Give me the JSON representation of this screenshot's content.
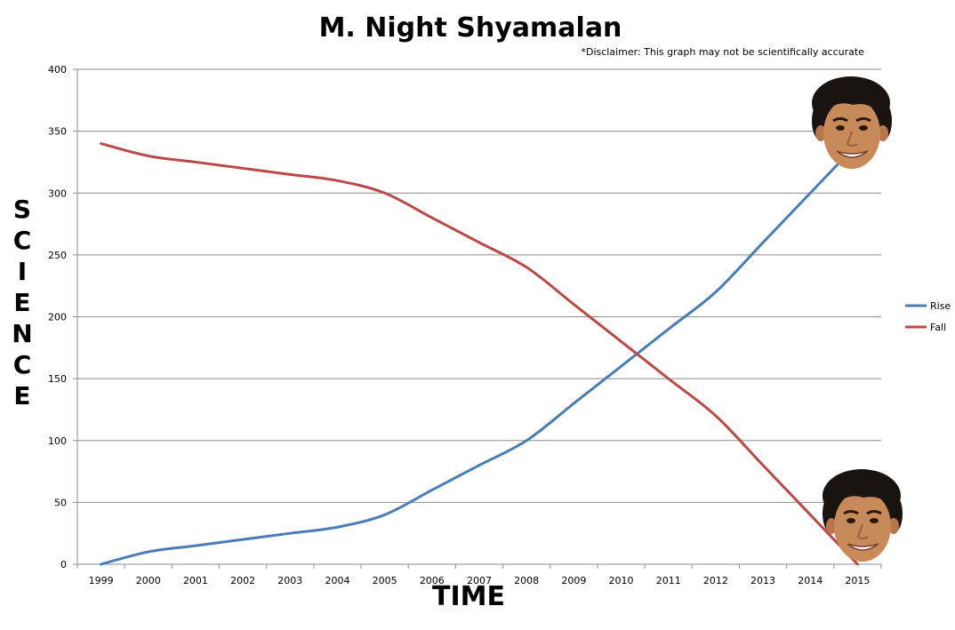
{
  "chart_data": {
    "type": "line",
    "title": "M. Night Shyamalan",
    "subtitle": "*Disclaimer: This graph may not be scientifically accurate",
    "xlabel": "TIME",
    "ylabel": "SCIENCE",
    "x": [
      "1999",
      "2000",
      "2001",
      "2002",
      "2003",
      "2004",
      "2005",
      "2006",
      "2007",
      "2008",
      "2009",
      "2010",
      "2011",
      "2012",
      "2013",
      "2014",
      "2015"
    ],
    "ylim": [
      0,
      400
    ],
    "yticks": [
      0,
      50,
      100,
      150,
      200,
      250,
      300,
      350,
      400
    ],
    "grid": true,
    "legend_position": "right",
    "series": [
      {
        "name": "Rise",
        "color": "#4a7db5",
        "values": [
          0,
          10,
          15,
          20,
          25,
          30,
          40,
          60,
          80,
          100,
          130,
          160,
          190,
          220,
          260,
          300,
          340
        ]
      },
      {
        "name": "Fall",
        "color": "#b94a48",
        "values": [
          340,
          330,
          325,
          320,
          315,
          310,
          300,
          280,
          260,
          240,
          210,
          180,
          150,
          120,
          80,
          40,
          0
        ]
      }
    ]
  },
  "annotations": [
    {
      "name": "face-top",
      "description": "photo of M. Night Shyamalan's face",
      "x": "2015",
      "y": 340
    },
    {
      "name": "face-bottom",
      "description": "photo of M. Night Shyamalan's face",
      "x": "2015",
      "y": 0
    }
  ]
}
